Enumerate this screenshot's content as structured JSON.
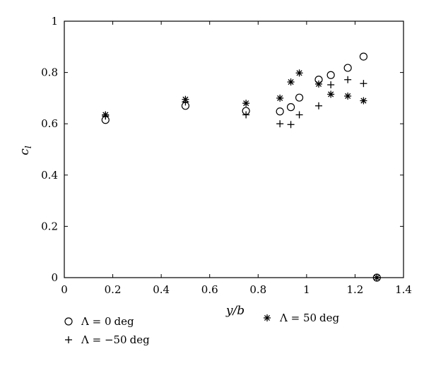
{
  "chart_data": {
    "type": "scatter",
    "title": "",
    "xlabel": "y/b",
    "ylabel": "c_l",
    "xlim": [
      0,
      1.4
    ],
    "ylim": [
      0,
      1
    ],
    "xticks": [
      0,
      0.2,
      0.4,
      0.6,
      0.8,
      1,
      1.2,
      1.4
    ],
    "yticks": [
      0,
      0.2,
      0.4,
      0.6,
      0.8,
      1
    ],
    "xtick_labels": [
      "0",
      "0.2",
      "0.4",
      "0.6",
      "0.8",
      "1",
      "1.2",
      "1.4"
    ],
    "ytick_labels": [
      "0",
      "0.2",
      "0.4",
      "0.6",
      "0.8",
      "1"
    ],
    "grid": false,
    "series": [
      {
        "name": "Λ = 0 deg",
        "marker": "circle",
        "points": [
          [
            0.17,
            0.615
          ],
          [
            0.5,
            0.67
          ],
          [
            0.75,
            0.65
          ],
          [
            0.89,
            0.648
          ],
          [
            0.935,
            0.665
          ],
          [
            0.97,
            0.702
          ],
          [
            1.05,
            0.772
          ],
          [
            1.1,
            0.79
          ],
          [
            1.17,
            0.818
          ],
          [
            1.235,
            0.862
          ],
          [
            1.29,
            0.0
          ]
        ]
      },
      {
        "name": "Λ = −50 deg",
        "marker": "plus",
        "points": [
          [
            0.17,
            0.63
          ],
          [
            0.5,
            0.685
          ],
          [
            0.75,
            0.635
          ],
          [
            0.89,
            0.6
          ],
          [
            0.935,
            0.597
          ],
          [
            0.97,
            0.635
          ],
          [
            1.05,
            0.67
          ],
          [
            1.1,
            0.752
          ],
          [
            1.17,
            0.772
          ],
          [
            1.235,
            0.757
          ],
          [
            1.29,
            0.0
          ]
        ]
      },
      {
        "name": "Λ = 50 deg",
        "marker": "asterisk",
        "points": [
          [
            0.17,
            0.635
          ],
          [
            0.5,
            0.695
          ],
          [
            0.75,
            0.68
          ],
          [
            0.89,
            0.7
          ],
          [
            0.935,
            0.763
          ],
          [
            0.97,
            0.798
          ],
          [
            1.05,
            0.755
          ],
          [
            1.1,
            0.715
          ],
          [
            1.17,
            0.708
          ],
          [
            1.235,
            0.69
          ],
          [
            1.29,
            0.0
          ]
        ]
      }
    ],
    "legend": [
      {
        "marker": "circle",
        "label_prefix": "Λ = ",
        "label_value": "0",
        "label_unit": "deg"
      },
      {
        "marker": "plus",
        "label_prefix": "Λ = ",
        "label_value": "−50",
        "label_unit": "deg"
      },
      {
        "marker": "asterisk",
        "label_prefix": "Λ = ",
        "label_value": "50",
        "label_unit": "deg"
      }
    ]
  }
}
